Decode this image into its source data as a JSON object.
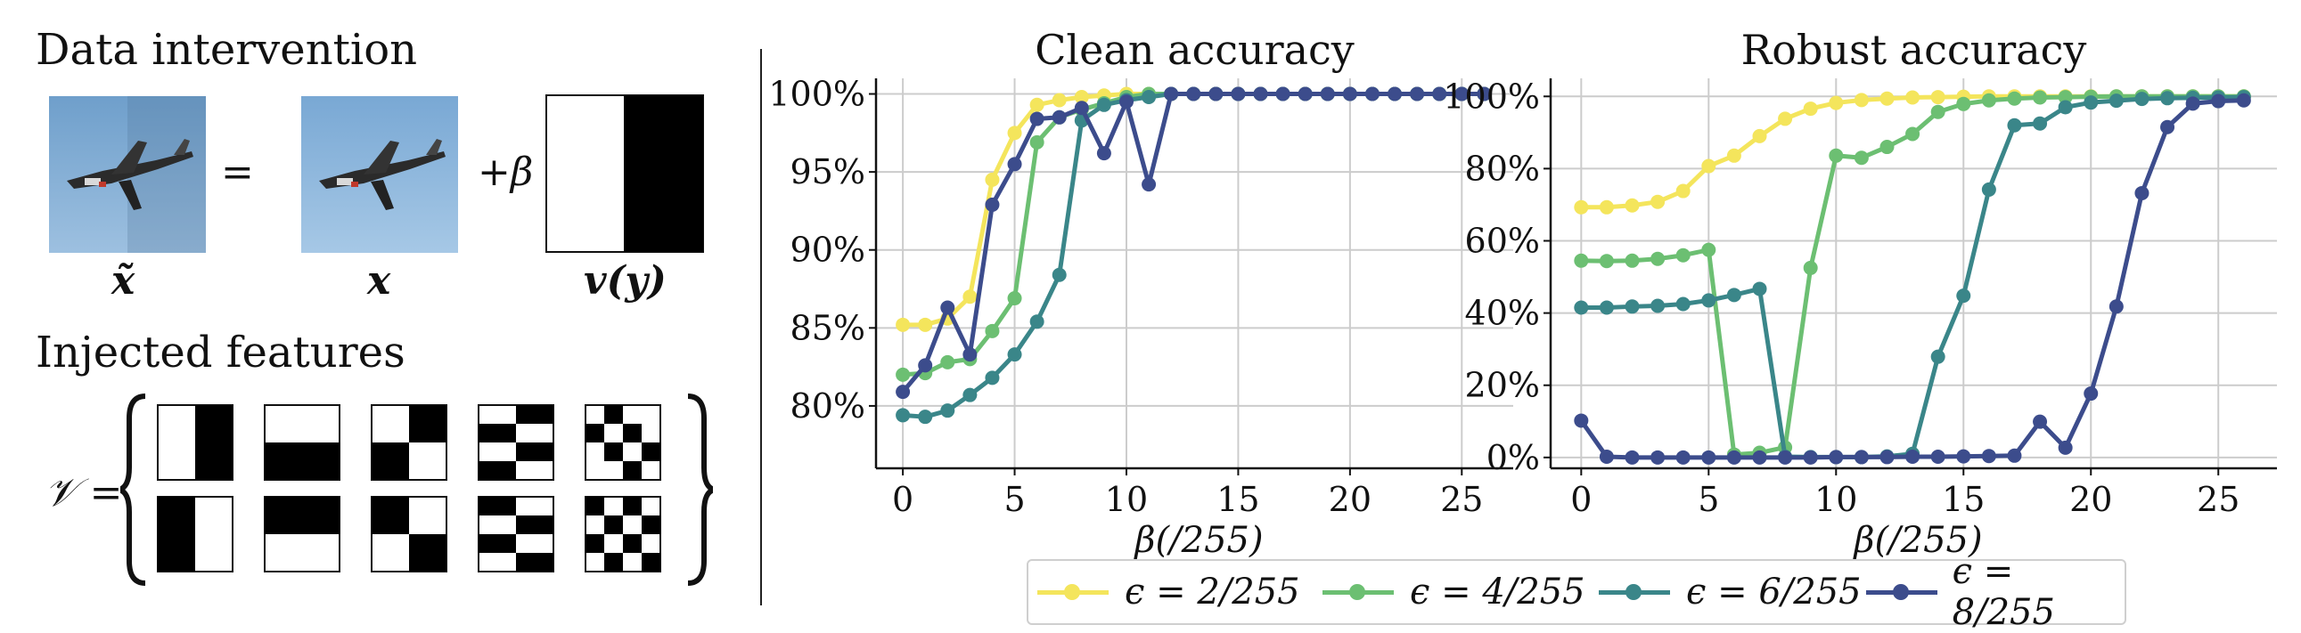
{
  "left": {
    "data_intervention_title": "Data intervention",
    "equals": "=",
    "plus_beta": "+β",
    "label_x_tilde": "x̃",
    "label_x": "x",
    "label_v": "v(y)",
    "injected_title": "Injected features",
    "v_set_label": "𝒱 ="
  },
  "legend": [
    {
      "label": "ϵ = 2/255",
      "color": "#f4e55c"
    },
    {
      "label": "ϵ = 4/255",
      "color": "#6cbf72"
    },
    {
      "label": "ϵ = 6/255",
      "color": "#3a8689"
    },
    {
      "label": "ϵ = 8/255",
      "color": "#3c4c8c"
    }
  ],
  "chart_data": [
    {
      "type": "line",
      "title": "Clean accuracy",
      "xlabel": "β(/255)",
      "ylabel": "",
      "xlim": [
        -1.2,
        27.3
      ],
      "ylim": [
        76.0,
        101.0
      ],
      "xticks": [
        0,
        5,
        10,
        15,
        20,
        25
      ],
      "xticklabels": [
        "0",
        "5",
        "10",
        "15",
        "20",
        "25"
      ],
      "yticks": [
        80,
        85,
        90,
        95,
        100
      ],
      "yticklabels": [
        "80%",
        "85%",
        "90%",
        "95%",
        "100%"
      ],
      "grid": true,
      "x": [
        0,
        1,
        2,
        3,
        4,
        5,
        6,
        7,
        8,
        9,
        10,
        11,
        12,
        13,
        14,
        15,
        16,
        17,
        18,
        19,
        20,
        21,
        22,
        23,
        24,
        25,
        26
      ],
      "series": [
        {
          "name": "ϵ = 2/255",
          "color": "#f4e55c",
          "values": [
            85.2,
            85.2,
            85.6,
            87.0,
            94.5,
            97.5,
            99.3,
            99.6,
            99.8,
            99.9,
            100,
            100,
            100,
            100,
            100,
            100,
            100,
            100,
            100,
            100,
            100,
            100,
            100,
            100,
            100,
            100,
            100
          ]
        },
        {
          "name": "ϵ = 4/255",
          "color": "#6cbf72",
          "values": [
            82.0,
            82.1,
            82.8,
            83.0,
            84.8,
            86.9,
            96.9,
            98.5,
            99.0,
            99.4,
            99.8,
            100,
            100,
            100,
            100,
            100,
            100,
            100,
            100,
            100,
            100,
            100,
            100,
            100,
            100,
            100,
            100
          ]
        },
        {
          "name": "ϵ = 6/255",
          "color": "#3a8689",
          "values": [
            79.4,
            79.3,
            79.7,
            80.7,
            81.8,
            83.3,
            85.4,
            88.4,
            98.3,
            99.3,
            99.6,
            99.8,
            100,
            100,
            100,
            100,
            100,
            100,
            100,
            100,
            100,
            100,
            100,
            100,
            100,
            100,
            100
          ]
        },
        {
          "name": "ϵ = 8/255",
          "color": "#3c4c8c",
          "values": [
            80.9,
            82.6,
            86.3,
            83.3,
            92.9,
            95.5,
            98.4,
            98.5,
            99.1,
            96.2,
            99.5,
            94.2,
            100,
            100,
            100,
            100,
            100,
            100,
            100,
            100,
            100,
            100,
            100,
            100,
            100,
            100,
            100
          ]
        }
      ]
    },
    {
      "type": "line",
      "title": "Robust accuracy",
      "xlabel": "β(/255)",
      "ylabel": "",
      "xlim": [
        -1.2,
        27.3
      ],
      "ylim": [
        -3.0,
        105.0
      ],
      "xticks": [
        0,
        5,
        10,
        15,
        20,
        25
      ],
      "xticklabels": [
        "0",
        "5",
        "10",
        "15",
        "20",
        "25"
      ],
      "yticks": [
        0,
        20,
        40,
        60,
        80,
        100
      ],
      "yticklabels": [
        "0%",
        "20%",
        "40%",
        "60%",
        "80%",
        "100%"
      ],
      "grid": true,
      "x": [
        0,
        1,
        2,
        3,
        4,
        5,
        6,
        7,
        8,
        9,
        10,
        11,
        12,
        13,
        14,
        15,
        16,
        17,
        18,
        19,
        20,
        21,
        22,
        23,
        24,
        25,
        26
      ],
      "series": [
        {
          "name": "ϵ = 2/255",
          "color": "#f4e55c",
          "values": [
            69.3,
            69.3,
            69.8,
            70.8,
            73.8,
            80.7,
            83.6,
            89.0,
            93.8,
            96.6,
            98.2,
            99.0,
            99.4,
            99.7,
            99.8,
            99.9,
            100,
            100,
            100,
            100,
            100,
            100,
            100,
            100,
            100,
            100,
            100
          ]
        },
        {
          "name": "ϵ = 4/255",
          "color": "#6cbf72",
          "values": [
            54.5,
            54.4,
            54.5,
            55.0,
            56.0,
            57.5,
            0.8,
            1.3,
            2.8,
            52.5,
            83.6,
            83.0,
            86.0,
            89.6,
            95.7,
            97.9,
            98.9,
            99.4,
            99.7,
            99.8,
            99.9,
            100,
            100,
            100,
            100,
            100,
            100
          ]
        },
        {
          "name": "ϵ = 6/255",
          "color": "#3a8689",
          "values": [
            41.5,
            41.5,
            41.8,
            42.0,
            42.5,
            43.5,
            45.0,
            46.7,
            0.2,
            0.1,
            0.1,
            0.1,
            0.3,
            1.0,
            27.9,
            44.8,
            74.2,
            92.0,
            92.5,
            97.0,
            98.3,
            98.8,
            99.3,
            99.5,
            99.6,
            99.7,
            99.8
          ]
        },
        {
          "name": "ϵ = 8/255",
          "color": "#3c4c8c",
          "values": [
            10.2,
            0.2,
            0.0,
            0.0,
            0.0,
            0.0,
            0.0,
            0.0,
            0.0,
            0.0,
            0.1,
            0.1,
            0.1,
            0.2,
            0.2,
            0.3,
            0.4,
            0.5,
            9.9,
            2.7,
            17.7,
            41.8,
            73.2,
            91.5,
            98.0,
            98.7,
            98.9
          ]
        }
      ]
    }
  ]
}
